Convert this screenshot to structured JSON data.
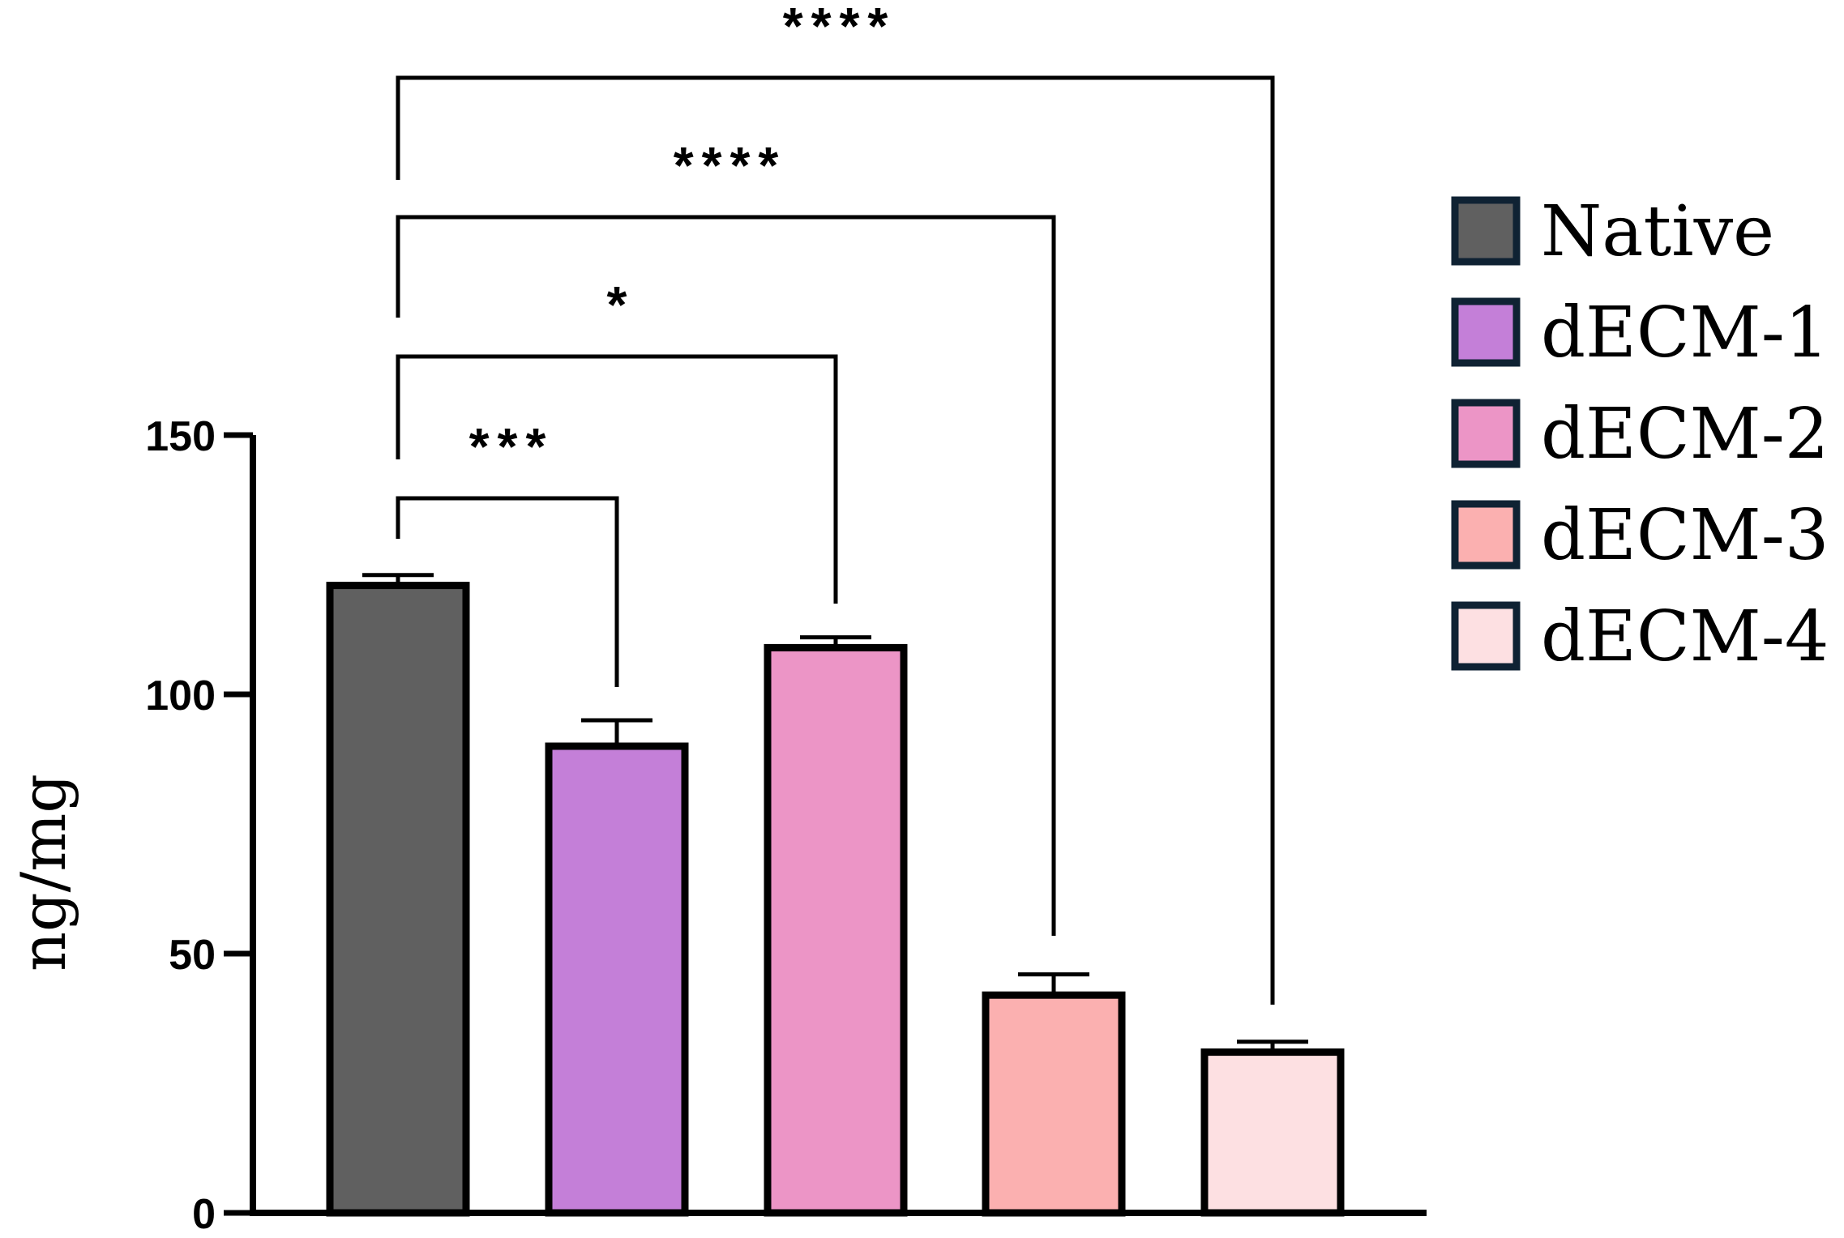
{
  "chart_data": {
    "type": "bar",
    "categories": [
      "Native",
      "dECM-1",
      "dECM-2",
      "dECM-3",
      "dECM-4"
    ],
    "values": [
      121,
      90,
      109,
      42,
      31
    ],
    "errors": [
      2,
      5,
      2,
      4,
      2
    ],
    "colors": [
      "#606060",
      "#c47fd8",
      "#ec95c6",
      "#fbb0b0",
      "#fde0e2"
    ],
    "edge_color": "#000000",
    "legend_edge_color": "#0f2233",
    "ylabel": "ng/mg",
    "ylim": [
      0,
      150
    ],
    "yticks": [
      {
        "value": 0,
        "label": "0"
      },
      {
        "value": 50,
        "label": "50"
      },
      {
        "value": 100,
        "label": "100"
      },
      {
        "value": 150,
        "label": "150"
      }
    ],
    "legend": {
      "placement": "right",
      "entries": [
        "Native",
        "dECM-1",
        "dECM-2",
        "dECM-3",
        "dECM-4"
      ]
    },
    "significance": [
      {
        "from": 0,
        "to": 1,
        "label": "***",
        "level": 1
      },
      {
        "from": 0,
        "to": 2,
        "label": "*",
        "level": 2
      },
      {
        "from": 0,
        "to": 3,
        "label": "****",
        "level": 3
      },
      {
        "from": 0,
        "to": 4,
        "label": "****",
        "level": 4
      }
    ]
  }
}
